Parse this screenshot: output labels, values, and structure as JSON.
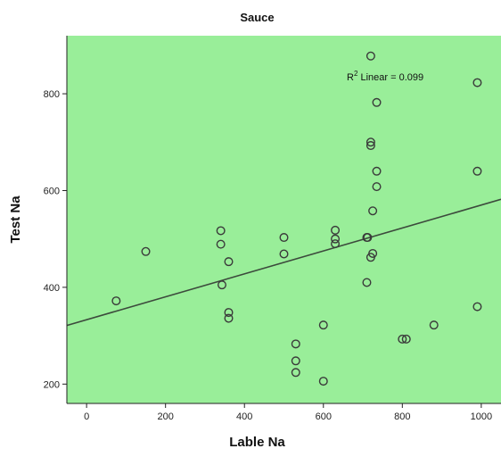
{
  "chart_data": {
    "type": "scatter",
    "title": "Sauce",
    "xlabel": "Lable Na",
    "ylabel": "Test Na",
    "xlim": [
      -50,
      1050
    ],
    "ylim": [
      160,
      920
    ],
    "xticks": [
      0,
      200,
      400,
      600,
      800,
      1000
    ],
    "yticks": [
      200,
      400,
      600,
      800
    ],
    "grid": false,
    "legend": "none",
    "colors": {
      "plot_background": "#99ee99",
      "marker": "#3a3a3a",
      "fit_line": "#3c4a3c",
      "axis": "#222222"
    },
    "series": [
      {
        "points": [
          {
            "x": 75,
            "y": 372
          },
          {
            "x": 150,
            "y": 474
          },
          {
            "x": 340,
            "y": 517
          },
          {
            "x": 340,
            "y": 489
          },
          {
            "x": 343,
            "y": 405
          },
          {
            "x": 360,
            "y": 453
          },
          {
            "x": 360,
            "y": 348
          },
          {
            "x": 360,
            "y": 336
          },
          {
            "x": 500,
            "y": 503
          },
          {
            "x": 500,
            "y": 469
          },
          {
            "x": 530,
            "y": 283
          },
          {
            "x": 530,
            "y": 248
          },
          {
            "x": 530,
            "y": 224
          },
          {
            "x": 600,
            "y": 322
          },
          {
            "x": 600,
            "y": 206
          },
          {
            "x": 630,
            "y": 518
          },
          {
            "x": 630,
            "y": 500
          },
          {
            "x": 630,
            "y": 490
          },
          {
            "x": 710,
            "y": 503
          },
          {
            "x": 712,
            "y": 503
          },
          {
            "x": 710,
            "y": 410
          },
          {
            "x": 720,
            "y": 878
          },
          {
            "x": 720,
            "y": 700
          },
          {
            "x": 720,
            "y": 693
          },
          {
            "x": 720,
            "y": 462
          },
          {
            "x": 725,
            "y": 558
          },
          {
            "x": 725,
            "y": 470
          },
          {
            "x": 735,
            "y": 782
          },
          {
            "x": 735,
            "y": 640
          },
          {
            "x": 735,
            "y": 608
          },
          {
            "x": 800,
            "y": 293
          },
          {
            "x": 810,
            "y": 293
          },
          {
            "x": 880,
            "y": 322
          },
          {
            "x": 990,
            "y": 823
          },
          {
            "x": 990,
            "y": 640
          },
          {
            "x": 990,
            "y": 360
          }
        ]
      }
    ],
    "fit_line": {
      "type": "linear",
      "intercept": 333,
      "slope": 0.237,
      "x_range": [
        -50,
        1050
      ]
    },
    "annotation": {
      "r2_label_base": "R",
      "r2_label_sup": "2",
      "r2_label_rest": " Linear = 0.099",
      "x": 700,
      "y": 835
    }
  }
}
